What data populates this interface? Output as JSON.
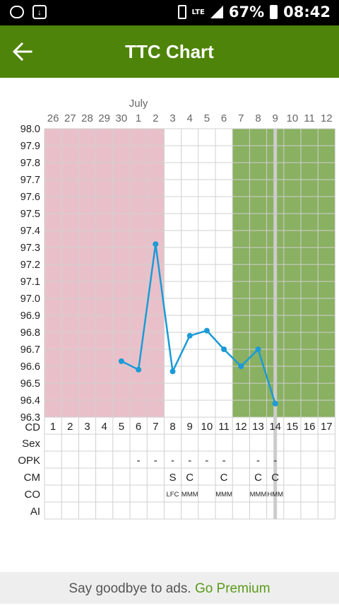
{
  "status_bar": {
    "battery": "67%",
    "time": "08:42",
    "network": "LTE"
  },
  "app_bar": {
    "title": "TTC Chart"
  },
  "month_label": "July",
  "dates": [
    "26",
    "27",
    "28",
    "29",
    "30",
    "1",
    "2",
    "3",
    "4",
    "5",
    "6",
    "7",
    "8",
    "9",
    "10",
    "11",
    "12"
  ],
  "y_labels": [
    "98.0",
    "97.9",
    "97.8",
    "97.7",
    "97.6",
    "97.5",
    "97.4",
    "97.3",
    "97.2",
    "97.1",
    "97.0",
    "96.9",
    "96.8",
    "96.7",
    "96.6",
    "96.5",
    "96.4",
    "96.3"
  ],
  "cycle_days_label": "CD",
  "cycle_days": [
    "1",
    "2",
    "3",
    "4",
    "5",
    "6",
    "7",
    "8",
    "9",
    "10",
    "11",
    "12",
    "13",
    "14",
    "15",
    "16",
    "17"
  ],
  "rows": [
    {
      "label": "Sex",
      "cells": [
        "",
        "",
        "",
        "",
        "",
        "",
        "",
        "",
        "",
        "",
        "",
        "",
        "",
        "",
        "",
        "",
        ""
      ]
    },
    {
      "label": "OPK",
      "cells": [
        "",
        "",
        "",
        "",
        "",
        "-",
        "-",
        "-",
        "-",
        "-",
        "-",
        "",
        "-",
        "-",
        "",
        "",
        ""
      ]
    },
    {
      "label": "CM",
      "cells": [
        "",
        "",
        "",
        "",
        "",
        "",
        "",
        "S",
        "C",
        "",
        "C",
        "",
        "C",
        "C",
        "",
        "",
        ""
      ]
    },
    {
      "label": "CO",
      "cells": [
        "",
        "",
        "",
        "",
        "",
        "",
        "",
        "LFC",
        "MMM",
        "",
        "MMM",
        "",
        "MMM",
        "HMM",
        "",
        "",
        ""
      ]
    },
    {
      "label": "AI",
      "cells": [
        "",
        "",
        "",
        "",
        "",
        "",
        "",
        "",
        "",
        "",
        "",
        "",
        "",
        "",
        "",
        "",
        ""
      ]
    }
  ],
  "colors": {
    "menstruation": "#e9c0c9",
    "fertile": "#8ab062",
    "line": "#1b9bd7",
    "grid": "#d0d0d0",
    "today": "#cccccc"
  },
  "chart_data": {
    "type": "line",
    "x": [
      5,
      6,
      7,
      8,
      9,
      10,
      11,
      12,
      13,
      14
    ],
    "values": [
      96.63,
      96.58,
      97.32,
      96.57,
      96.78,
      96.81,
      96.7,
      96.6,
      96.7,
      96.38
    ],
    "ylim": [
      96.3,
      98.0
    ],
    "menstruation_days": [
      1,
      7
    ],
    "fertile_days": [
      12,
      17
    ],
    "today_day": 14
  },
  "banner": {
    "text": "Say goodbye to ads. ",
    "link": "Go Premium"
  }
}
